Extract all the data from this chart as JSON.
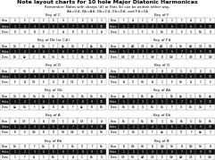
{
  "title": "Note layout charts for 10 hole Major Diatonic Harmonicas",
  "subtitle": "Remember: Notes with sharps (#) or flats (b) can be written either way,\nAb=G#, Bb=A#, Db=C#, Eb=D#, and F#=Gb",
  "keys_left": [
    {
      "name": "Key of C",
      "blow": [
        "C",
        "E",
        "G",
        "C",
        "E",
        "G",
        "C",
        "E",
        "G",
        "C"
      ],
      "draw": [
        "D",
        "G",
        "B",
        "D",
        "F",
        "A",
        "B",
        "D",
        "F",
        "A"
      ]
    },
    {
      "name": "Key of Db (or C#)",
      "blow": [
        "Db",
        "F",
        "Ab",
        "Db",
        "F",
        "Ab",
        "Db",
        "F",
        "Ab",
        "Db"
      ],
      "draw": [
        "Eb",
        "Ab",
        "C",
        "Eb",
        "Gb",
        "Bb",
        "C",
        "Eb",
        "Gb",
        "Bb"
      ]
    },
    {
      "name": "Key of D",
      "blow": [
        "D",
        "F#",
        "A",
        "D",
        "F#",
        "A",
        "D",
        "F#",
        "A",
        "D"
      ],
      "draw": [
        "E",
        "A",
        "C#",
        "E",
        "G",
        "B",
        "C#",
        "E",
        "G",
        "B"
      ]
    },
    {
      "name": "Key of Gb",
      "blow": [
        "Gb",
        "Bb",
        "Db",
        "Gb",
        "Bb",
        "Db",
        "Gb",
        "Bb",
        "Db",
        "Gb"
      ],
      "draw": [
        "Ab",
        "Db",
        "F",
        "Ab",
        "B",
        "Eb",
        "F",
        "Ab",
        "B",
        "Eb"
      ]
    },
    {
      "name": "Key of A",
      "blow": [
        "A",
        "C#",
        "E",
        "A",
        "C#",
        "E",
        "A",
        "C#",
        "E",
        "A"
      ],
      "draw": [
        "B",
        "E",
        "G#",
        "B",
        "D",
        "F#",
        "G#",
        "B",
        "D",
        "F#"
      ]
    },
    {
      "name": "Key of Bb",
      "blow": [
        "Bb",
        "D",
        "F",
        "Bb",
        "D",
        "F",
        "Bb",
        "D",
        "F",
        "Bb"
      ],
      "draw": [
        "C",
        "F",
        "A",
        "C",
        "Eb",
        "G",
        "A",
        "C",
        "Eb",
        "G"
      ]
    }
  ],
  "keys_right": [
    {
      "name": "Key of F",
      "blow": [
        "F",
        "A",
        "C",
        "F",
        "A",
        "C",
        "F",
        "A",
        "C",
        "F"
      ],
      "draw": [
        "G",
        "C",
        "E",
        "G",
        "Bb",
        "D",
        "E",
        "G",
        "Bb",
        "D"
      ]
    },
    {
      "name": "Key of F#",
      "blow": [
        "F#",
        "A#",
        "C#",
        "F#",
        "A#",
        "C#",
        "F#",
        "A#",
        "C#",
        "F#"
      ],
      "draw": [
        "G#",
        "C#",
        "F",
        "G#",
        "B",
        "D#",
        "F",
        "G#",
        "B",
        "D#"
      ]
    },
    {
      "name": "Key of G",
      "blow": [
        "G",
        "B",
        "D",
        "G",
        "B",
        "D",
        "G",
        "B",
        "D",
        "G"
      ],
      "draw": [
        "A",
        "D",
        "F#",
        "A",
        "C",
        "E",
        "F#",
        "A",
        "C",
        "E"
      ]
    },
    {
      "name": "Key of Ab",
      "blow": [
        "Ab",
        "C",
        "Eb",
        "Ab",
        "C",
        "Eb",
        "Ab",
        "C",
        "Eb",
        "Ab"
      ],
      "draw": [
        "Bb",
        "Eb",
        "G",
        "Bb",
        "Db",
        "F",
        "G",
        "Bb",
        "Db",
        "F"
      ]
    },
    {
      "name": "Key of Eb",
      "blow": [
        "Eb",
        "G",
        "Bb",
        "Eb",
        "G",
        "Bb",
        "Eb",
        "G",
        "Bb",
        "Eb"
      ],
      "draw": [
        "F",
        "Bb",
        "D",
        "F",
        "Ab",
        "C",
        "D",
        "F",
        "Ab",
        "C"
      ]
    },
    {
      "name": "Key of B",
      "blow": [
        "B",
        "D#",
        "F#",
        "B",
        "D#",
        "F#",
        "B",
        "D#",
        "F#",
        "B"
      ],
      "draw": [
        "C#",
        "F#",
        "A#",
        "C#",
        "E",
        "G#",
        "A#",
        "C#",
        "E",
        "G#"
      ]
    }
  ],
  "holes": [
    "1",
    "2",
    "3",
    "4",
    "5",
    "6",
    "7",
    "8",
    "9",
    "10"
  ],
  "background_color": "#ffffff",
  "title_fontsize": 4.5,
  "subtitle_fontsize": 2.8,
  "key_name_fontsize": 3.0,
  "cell_fontsize": 2.2,
  "label_fontsize": 2.2,
  "holes_bg": "#111111",
  "holes_fg": "#ffffff",
  "blow_bg": "#ffffff",
  "blow_fg": "#000000",
  "draw_bg": "#ffffff",
  "draw_fg": "#000000",
  "border_color": "#888888",
  "border_lw": 0.3
}
